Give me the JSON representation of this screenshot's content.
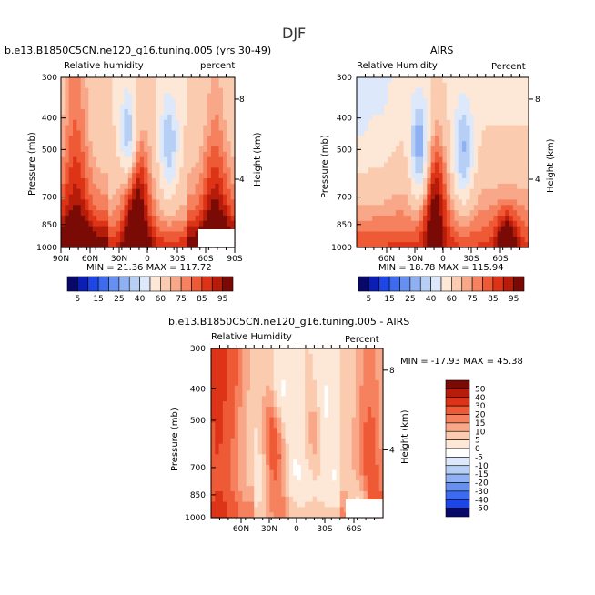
{
  "page_title": "DJF",
  "panels": [
    {
      "title": "b.e13.B1850C5CN.ne120_g16.tuning.005 (yrs 30-49)",
      "left_label": "Relative humidity",
      "right_label": "percent",
      "xlabel_left": "Pressure (mb)",
      "ylabel_right": "Height (km)",
      "stats": "MIN =   21.36   MAX =  117.72"
    },
    {
      "title": "AIRS",
      "left_label": "Relative Humidity",
      "right_label": "Percent",
      "xlabel_left": "Pressure (mb)",
      "ylabel_right": "Height (km)",
      "stats": "MIN =    18.78   MAX =  115.94"
    },
    {
      "title": "b.e13.B1850C5CN.ne120_g16.tuning.005 - AIRS",
      "left_label": "Relative Humidity",
      "right_label": "Percent",
      "xlabel_left": "Pressure (mb)",
      "ylabel_right": "Height (km)",
      "stats": "MIN = -17.93   MAX =   45.38"
    }
  ],
  "colorbar_abs": {
    "labels": [
      "5",
      "15",
      "25",
      "40",
      "60",
      "75",
      "85",
      "95"
    ],
    "colors": [
      "#08086b",
      "#0c1fb4",
      "#1e46e6",
      "#3d6bf0",
      "#6590f0",
      "#8fb0f2",
      "#b7cff5",
      "#dde8fa",
      "#fde7d6",
      "#fbcbb0",
      "#f8a888",
      "#f5815e",
      "#ef5a36",
      "#dd3317",
      "#b51d0a",
      "#7a0a05"
    ]
  },
  "colorbar_diff": {
    "labels": [
      "50",
      "40",
      "30",
      "20",
      "15",
      "10",
      "5",
      "0",
      "-5",
      "-10",
      "-15",
      "-20",
      "-30",
      "-40",
      "-50"
    ],
    "colors": [
      "#7a0a05",
      "#b51d0a",
      "#dd3317",
      "#ef5a36",
      "#f5815e",
      "#f8a888",
      "#fbcbb0",
      "#fde7d6",
      "#ffffff",
      "#dde8fa",
      "#b7cff5",
      "#8fb0f2",
      "#6590f0",
      "#3d6bf0",
      "#1e46e6",
      "#08086b"
    ]
  },
  "chart_data": {
    "type": "heatmap",
    "title": "DJF",
    "variable": "Relative humidity",
    "units": "percent",
    "x_ticks_full": [
      "90N",
      "60N",
      "30N",
      "0",
      "30S",
      "60S",
      "90S"
    ],
    "x_ticks_short": [
      "60N",
      "30N",
      "0",
      "30S",
      "60S"
    ],
    "pressure_ticks_mb": [
      300,
      400,
      500,
      700,
      850,
      1000
    ],
    "height_ticks_km": [
      8,
      4
    ],
    "ylog": true,
    "fields": [
      {
        "name": "b.e13.B1850C5CN.ne120_g16.tuning.005 (yrs 30-49)",
        "min": 21.36,
        "max": 117.72
      },
      {
        "name": "AIRS",
        "min": 18.78,
        "max": 115.94
      },
      {
        "name": "b.e13.B1850C5CN.ne120_g16.tuning.005 - AIRS",
        "min": -17.93,
        "max": 45.38
      }
    ]
  }
}
